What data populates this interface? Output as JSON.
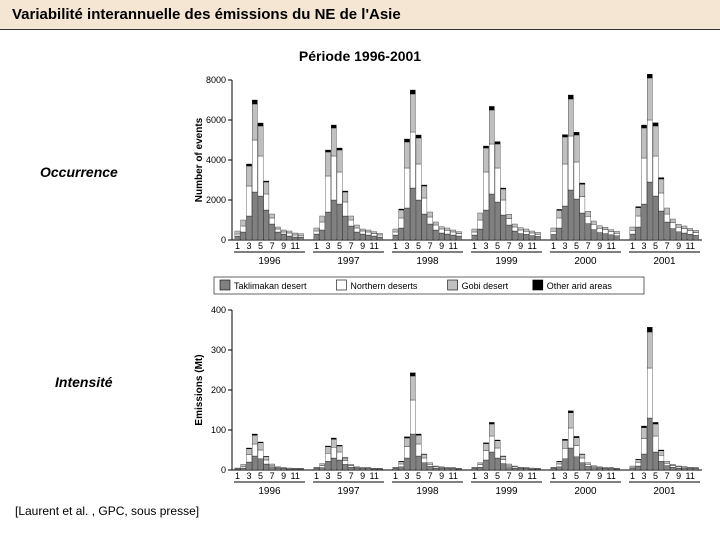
{
  "header": {
    "title": "Variabilité interannuelle des émissions du NE de l'Asie"
  },
  "subtitle": "Période 1996-2001",
  "labels": {
    "occurrence": "Occurrence",
    "intensite": "Intensité",
    "citation": "[Laurent et al. , GPC, sous presse]"
  },
  "colors": {
    "header_bg": "#f5e6d3",
    "taklimakan": "#808080",
    "northern": "#ffffff",
    "gobi": "#c0c0c0",
    "other": "#000000",
    "axis": "#000000"
  },
  "legend": {
    "items": [
      {
        "label": "Taklimakan desert",
        "fill": "#808080"
      },
      {
        "label": "Northern deserts",
        "fill": "#ffffff"
      },
      {
        "label": "Gobi desert",
        "fill": "#c0c0c0"
      },
      {
        "label": "Other arid areas",
        "fill": "#000000"
      }
    ]
  },
  "chart_top": {
    "type": "stacked-bar",
    "ylabel": "Number of events",
    "ylim": [
      0,
      8000
    ],
    "yticks": [
      0,
      2000,
      4000,
      6000,
      8000
    ],
    "years": [
      1996,
      1997,
      1998,
      1999,
      2000,
      2001
    ],
    "month_ticks": [
      1,
      3,
      5,
      7,
      9,
      11
    ],
    "series_order": [
      "taklimakan",
      "northern",
      "gobi",
      "other"
    ],
    "data": {
      "1996": [
        {
          "t": 200,
          "n": 100,
          "g": 150,
          "o": 0
        },
        {
          "t": 400,
          "n": 300,
          "g": 300,
          "o": 0
        },
        {
          "t": 1200,
          "n": 1500,
          "g": 1000,
          "o": 100
        },
        {
          "t": 2400,
          "n": 2600,
          "g": 1800,
          "o": 200
        },
        {
          "t": 2200,
          "n": 2000,
          "g": 1500,
          "o": 150
        },
        {
          "t": 1500,
          "n": 800,
          "g": 600,
          "o": 50
        },
        {
          "t": 800,
          "n": 300,
          "g": 200,
          "o": 0
        },
        {
          "t": 400,
          "n": 150,
          "g": 100,
          "o": 0
        },
        {
          "t": 300,
          "n": 100,
          "g": 100,
          "o": 0
        },
        {
          "t": 200,
          "n": 150,
          "g": 100,
          "o": 0
        },
        {
          "t": 150,
          "n": 100,
          "g": 100,
          "o": 0
        },
        {
          "t": 150,
          "n": 80,
          "g": 80,
          "o": 0
        }
      ],
      "1997": [
        {
          "t": 300,
          "n": 150,
          "g": 150,
          "o": 0
        },
        {
          "t": 500,
          "n": 400,
          "g": 300,
          "o": 0
        },
        {
          "t": 1400,
          "n": 1800,
          "g": 1200,
          "o": 100
        },
        {
          "t": 2000,
          "n": 2200,
          "g": 1400,
          "o": 150
        },
        {
          "t": 1800,
          "n": 1600,
          "g": 1100,
          "o": 100
        },
        {
          "t": 1200,
          "n": 700,
          "g": 500,
          "o": 50
        },
        {
          "t": 700,
          "n": 300,
          "g": 200,
          "o": 0
        },
        {
          "t": 400,
          "n": 200,
          "g": 150,
          "o": 0
        },
        {
          "t": 300,
          "n": 150,
          "g": 100,
          "o": 0
        },
        {
          "t": 250,
          "n": 150,
          "g": 100,
          "o": 0
        },
        {
          "t": 200,
          "n": 120,
          "g": 100,
          "o": 0
        },
        {
          "t": 150,
          "n": 100,
          "g": 80,
          "o": 0
        }
      ],
      "1998": [
        {
          "t": 250,
          "n": 150,
          "g": 150,
          "o": 0
        },
        {
          "t": 600,
          "n": 500,
          "g": 400,
          "o": 50
        },
        {
          "t": 1600,
          "n": 2000,
          "g": 1300,
          "o": 150
        },
        {
          "t": 2600,
          "n": 2800,
          "g": 1900,
          "o": 200
        },
        {
          "t": 2000,
          "n": 1800,
          "g": 1300,
          "o": 150
        },
        {
          "t": 1300,
          "n": 800,
          "g": 600,
          "o": 50
        },
        {
          "t": 800,
          "n": 350,
          "g": 250,
          "o": 0
        },
        {
          "t": 500,
          "n": 250,
          "g": 150,
          "o": 0
        },
        {
          "t": 350,
          "n": 200,
          "g": 120,
          "o": 0
        },
        {
          "t": 300,
          "n": 180,
          "g": 120,
          "o": 0
        },
        {
          "t": 250,
          "n": 150,
          "g": 100,
          "o": 0
        },
        {
          "t": 200,
          "n": 120,
          "g": 100,
          "o": 0
        }
      ],
      "1999": [
        {
          "t": 250,
          "n": 150,
          "g": 150,
          "o": 0
        },
        {
          "t": 550,
          "n": 450,
          "g": 350,
          "o": 0
        },
        {
          "t": 1500,
          "n": 1900,
          "g": 1200,
          "o": 100
        },
        {
          "t": 2300,
          "n": 2500,
          "g": 1700,
          "o": 180
        },
        {
          "t": 1900,
          "n": 1700,
          "g": 1200,
          "o": 120
        },
        {
          "t": 1250,
          "n": 750,
          "g": 550,
          "o": 50
        },
        {
          "t": 750,
          "n": 320,
          "g": 220,
          "o": 0
        },
        {
          "t": 450,
          "n": 200,
          "g": 150,
          "o": 0
        },
        {
          "t": 320,
          "n": 180,
          "g": 120,
          "o": 0
        },
        {
          "t": 280,
          "n": 160,
          "g": 110,
          "o": 0
        },
        {
          "t": 220,
          "n": 130,
          "g": 100,
          "o": 0
        },
        {
          "t": 180,
          "n": 110,
          "g": 90,
          "o": 0
        }
      ],
      "2000": [
        {
          "t": 280,
          "n": 160,
          "g": 160,
          "o": 0
        },
        {
          "t": 600,
          "n": 500,
          "g": 380,
          "o": 50
        },
        {
          "t": 1700,
          "n": 2100,
          "g": 1350,
          "o": 120
        },
        {
          "t": 2500,
          "n": 2700,
          "g": 1850,
          "o": 200
        },
        {
          "t": 2050,
          "n": 1850,
          "g": 1350,
          "o": 140
        },
        {
          "t": 1350,
          "n": 820,
          "g": 620,
          "o": 60
        },
        {
          "t": 820,
          "n": 360,
          "g": 260,
          "o": 0
        },
        {
          "t": 520,
          "n": 260,
          "g": 170,
          "o": 0
        },
        {
          "t": 370,
          "n": 210,
          "g": 130,
          "o": 0
        },
        {
          "t": 320,
          "n": 190,
          "g": 130,
          "o": 0
        },
        {
          "t": 260,
          "n": 150,
          "g": 110,
          "o": 0
        },
        {
          "t": 210,
          "n": 120,
          "g": 100,
          "o": 0
        }
      ],
      "2001": [
        {
          "t": 300,
          "n": 180,
          "g": 170,
          "o": 0
        },
        {
          "t": 650,
          "n": 550,
          "g": 420,
          "o": 50
        },
        {
          "t": 1800,
          "n": 2300,
          "g": 1500,
          "o": 150
        },
        {
          "t": 2900,
          "n": 3100,
          "g": 2100,
          "o": 250
        },
        {
          "t": 2200,
          "n": 2000,
          "g": 1500,
          "o": 160
        },
        {
          "t": 1450,
          "n": 900,
          "g": 700,
          "o": 70
        },
        {
          "t": 900,
          "n": 400,
          "g": 300,
          "o": 0
        },
        {
          "t": 570,
          "n": 290,
          "g": 190,
          "o": 0
        },
        {
          "t": 410,
          "n": 230,
          "g": 150,
          "o": 0
        },
        {
          "t": 350,
          "n": 210,
          "g": 140,
          "o": 0
        },
        {
          "t": 290,
          "n": 170,
          "g": 120,
          "o": 0
        },
        {
          "t": 230,
          "n": 140,
          "g": 110,
          "o": 0
        }
      ]
    }
  },
  "chart_bottom": {
    "type": "stacked-bar",
    "ylabel": "Emissions (Mt)",
    "ylim": [
      0,
      400
    ],
    "yticks": [
      0,
      100,
      200,
      300,
      400
    ],
    "years": [
      1996,
      1997,
      1998,
      1999,
      2000,
      2001
    ],
    "month_ticks": [
      1,
      3,
      5,
      7,
      9,
      11
    ],
    "data": {
      "1996": [
        {
          "t": 2,
          "n": 1,
          "g": 2,
          "o": 0
        },
        {
          "t": 5,
          "n": 4,
          "g": 5,
          "o": 0
        },
        {
          "t": 20,
          "n": 18,
          "g": 15,
          "o": 2
        },
        {
          "t": 35,
          "n": 30,
          "g": 22,
          "o": 3
        },
        {
          "t": 28,
          "n": 22,
          "g": 18,
          "o": 2
        },
        {
          "t": 15,
          "n": 10,
          "g": 8,
          "o": 1
        },
        {
          "t": 8,
          "n": 4,
          "g": 3,
          "o": 0
        },
        {
          "t": 4,
          "n": 2,
          "g": 2,
          "o": 0
        },
        {
          "t": 3,
          "n": 2,
          "g": 1,
          "o": 0
        },
        {
          "t": 2,
          "n": 2,
          "g": 1,
          "o": 0
        },
        {
          "t": 2,
          "n": 1,
          "g": 1,
          "o": 0
        },
        {
          "t": 2,
          "n": 1,
          "g": 1,
          "o": 0
        }
      ],
      "1997": [
        {
          "t": 3,
          "n": 2,
          "g": 2,
          "o": 0
        },
        {
          "t": 6,
          "n": 5,
          "g": 5,
          "o": 0
        },
        {
          "t": 22,
          "n": 20,
          "g": 16,
          "o": 2
        },
        {
          "t": 30,
          "n": 27,
          "g": 20,
          "o": 3
        },
        {
          "t": 25,
          "n": 20,
          "g": 15,
          "o": 2
        },
        {
          "t": 14,
          "n": 9,
          "g": 7,
          "o": 1
        },
        {
          "t": 7,
          "n": 4,
          "g": 3,
          "o": 0
        },
        {
          "t": 4,
          "n": 2,
          "g": 2,
          "o": 0
        },
        {
          "t": 3,
          "n": 2,
          "g": 1,
          "o": 0
        },
        {
          "t": 3,
          "n": 2,
          "g": 1,
          "o": 0
        },
        {
          "t": 2,
          "n": 1,
          "g": 1,
          "o": 0
        },
        {
          "t": 2,
          "n": 1,
          "g": 1,
          "o": 0
        }
      ],
      "1998": [
        {
          "t": 3,
          "n": 2,
          "g": 2,
          "o": 0
        },
        {
          "t": 8,
          "n": 7,
          "g": 6,
          "o": 1
        },
        {
          "t": 30,
          "n": 28,
          "g": 22,
          "o": 3
        },
        {
          "t": 90,
          "n": 85,
          "g": 60,
          "o": 8
        },
        {
          "t": 35,
          "n": 30,
          "g": 22,
          "o": 3
        },
        {
          "t": 18,
          "n": 12,
          "g": 9,
          "o": 1
        },
        {
          "t": 9,
          "n": 5,
          "g": 4,
          "o": 0
        },
        {
          "t": 5,
          "n": 3,
          "g": 2,
          "o": 0
        },
        {
          "t": 4,
          "n": 2,
          "g": 2,
          "o": 0
        },
        {
          "t": 3,
          "n": 2,
          "g": 1,
          "o": 0
        },
        {
          "t": 3,
          "n": 2,
          "g": 1,
          "o": 0
        },
        {
          "t": 2,
          "n": 1,
          "g": 1,
          "o": 0
        }
      ],
      "1999": [
        {
          "t": 3,
          "n": 2,
          "g": 2,
          "o": 0
        },
        {
          "t": 7,
          "n": 6,
          "g": 5,
          "o": 0
        },
        {
          "t": 25,
          "n": 23,
          "g": 18,
          "o": 2
        },
        {
          "t": 45,
          "n": 40,
          "g": 30,
          "o": 4
        },
        {
          "t": 30,
          "n": 25,
          "g": 18,
          "o": 2
        },
        {
          "t": 16,
          "n": 10,
          "g": 8,
          "o": 1
        },
        {
          "t": 8,
          "n": 4,
          "g": 3,
          "o": 0
        },
        {
          "t": 5,
          "n": 3,
          "g": 2,
          "o": 0
        },
        {
          "t": 3,
          "n": 2,
          "g": 2,
          "o": 0
        },
        {
          "t": 3,
          "n": 2,
          "g": 1,
          "o": 0
        },
        {
          "t": 2,
          "n": 2,
          "g": 1,
          "o": 0
        },
        {
          "t": 2,
          "n": 1,
          "g": 1,
          "o": 0
        }
      ],
      "2000": [
        {
          "t": 3,
          "n": 2,
          "g": 2,
          "o": 0
        },
        {
          "t": 8,
          "n": 7,
          "g": 6,
          "o": 1
        },
        {
          "t": 28,
          "n": 26,
          "g": 20,
          "o": 3
        },
        {
          "t": 55,
          "n": 50,
          "g": 38,
          "o": 5
        },
        {
          "t": 33,
          "n": 28,
          "g": 20,
          "o": 3
        },
        {
          "t": 18,
          "n": 12,
          "g": 9,
          "o": 1
        },
        {
          "t": 9,
          "n": 5,
          "g": 4,
          "o": 0
        },
        {
          "t": 6,
          "n": 3,
          "g": 2,
          "o": 0
        },
        {
          "t": 4,
          "n": 2,
          "g": 2,
          "o": 0
        },
        {
          "t": 3,
          "n": 2,
          "g": 1,
          "o": 0
        },
        {
          "t": 3,
          "n": 2,
          "g": 1,
          "o": 0
        },
        {
          "t": 2,
          "n": 1,
          "g": 1,
          "o": 0
        }
      ],
      "2001": [
        {
          "t": 4,
          "n": 3,
          "g": 3,
          "o": 0
        },
        {
          "t": 10,
          "n": 9,
          "g": 7,
          "o": 1
        },
        {
          "t": 40,
          "n": 38,
          "g": 28,
          "o": 4
        },
        {
          "t": 130,
          "n": 125,
          "g": 90,
          "o": 12
        },
        {
          "t": 45,
          "n": 40,
          "g": 30,
          "o": 4
        },
        {
          "t": 22,
          "n": 15,
          "g": 11,
          "o": 2
        },
        {
          "t": 11,
          "n": 6,
          "g": 5,
          "o": 0
        },
        {
          "t": 7,
          "n": 4,
          "g": 3,
          "o": 0
        },
        {
          "t": 5,
          "n": 3,
          "g": 2,
          "o": 0
        },
        {
          "t": 4,
          "n": 3,
          "g": 2,
          "o": 0
        },
        {
          "t": 3,
          "n": 2,
          "g": 2,
          "o": 0
        },
        {
          "t": 3,
          "n": 2,
          "g": 1,
          "o": 0
        }
      ]
    }
  }
}
